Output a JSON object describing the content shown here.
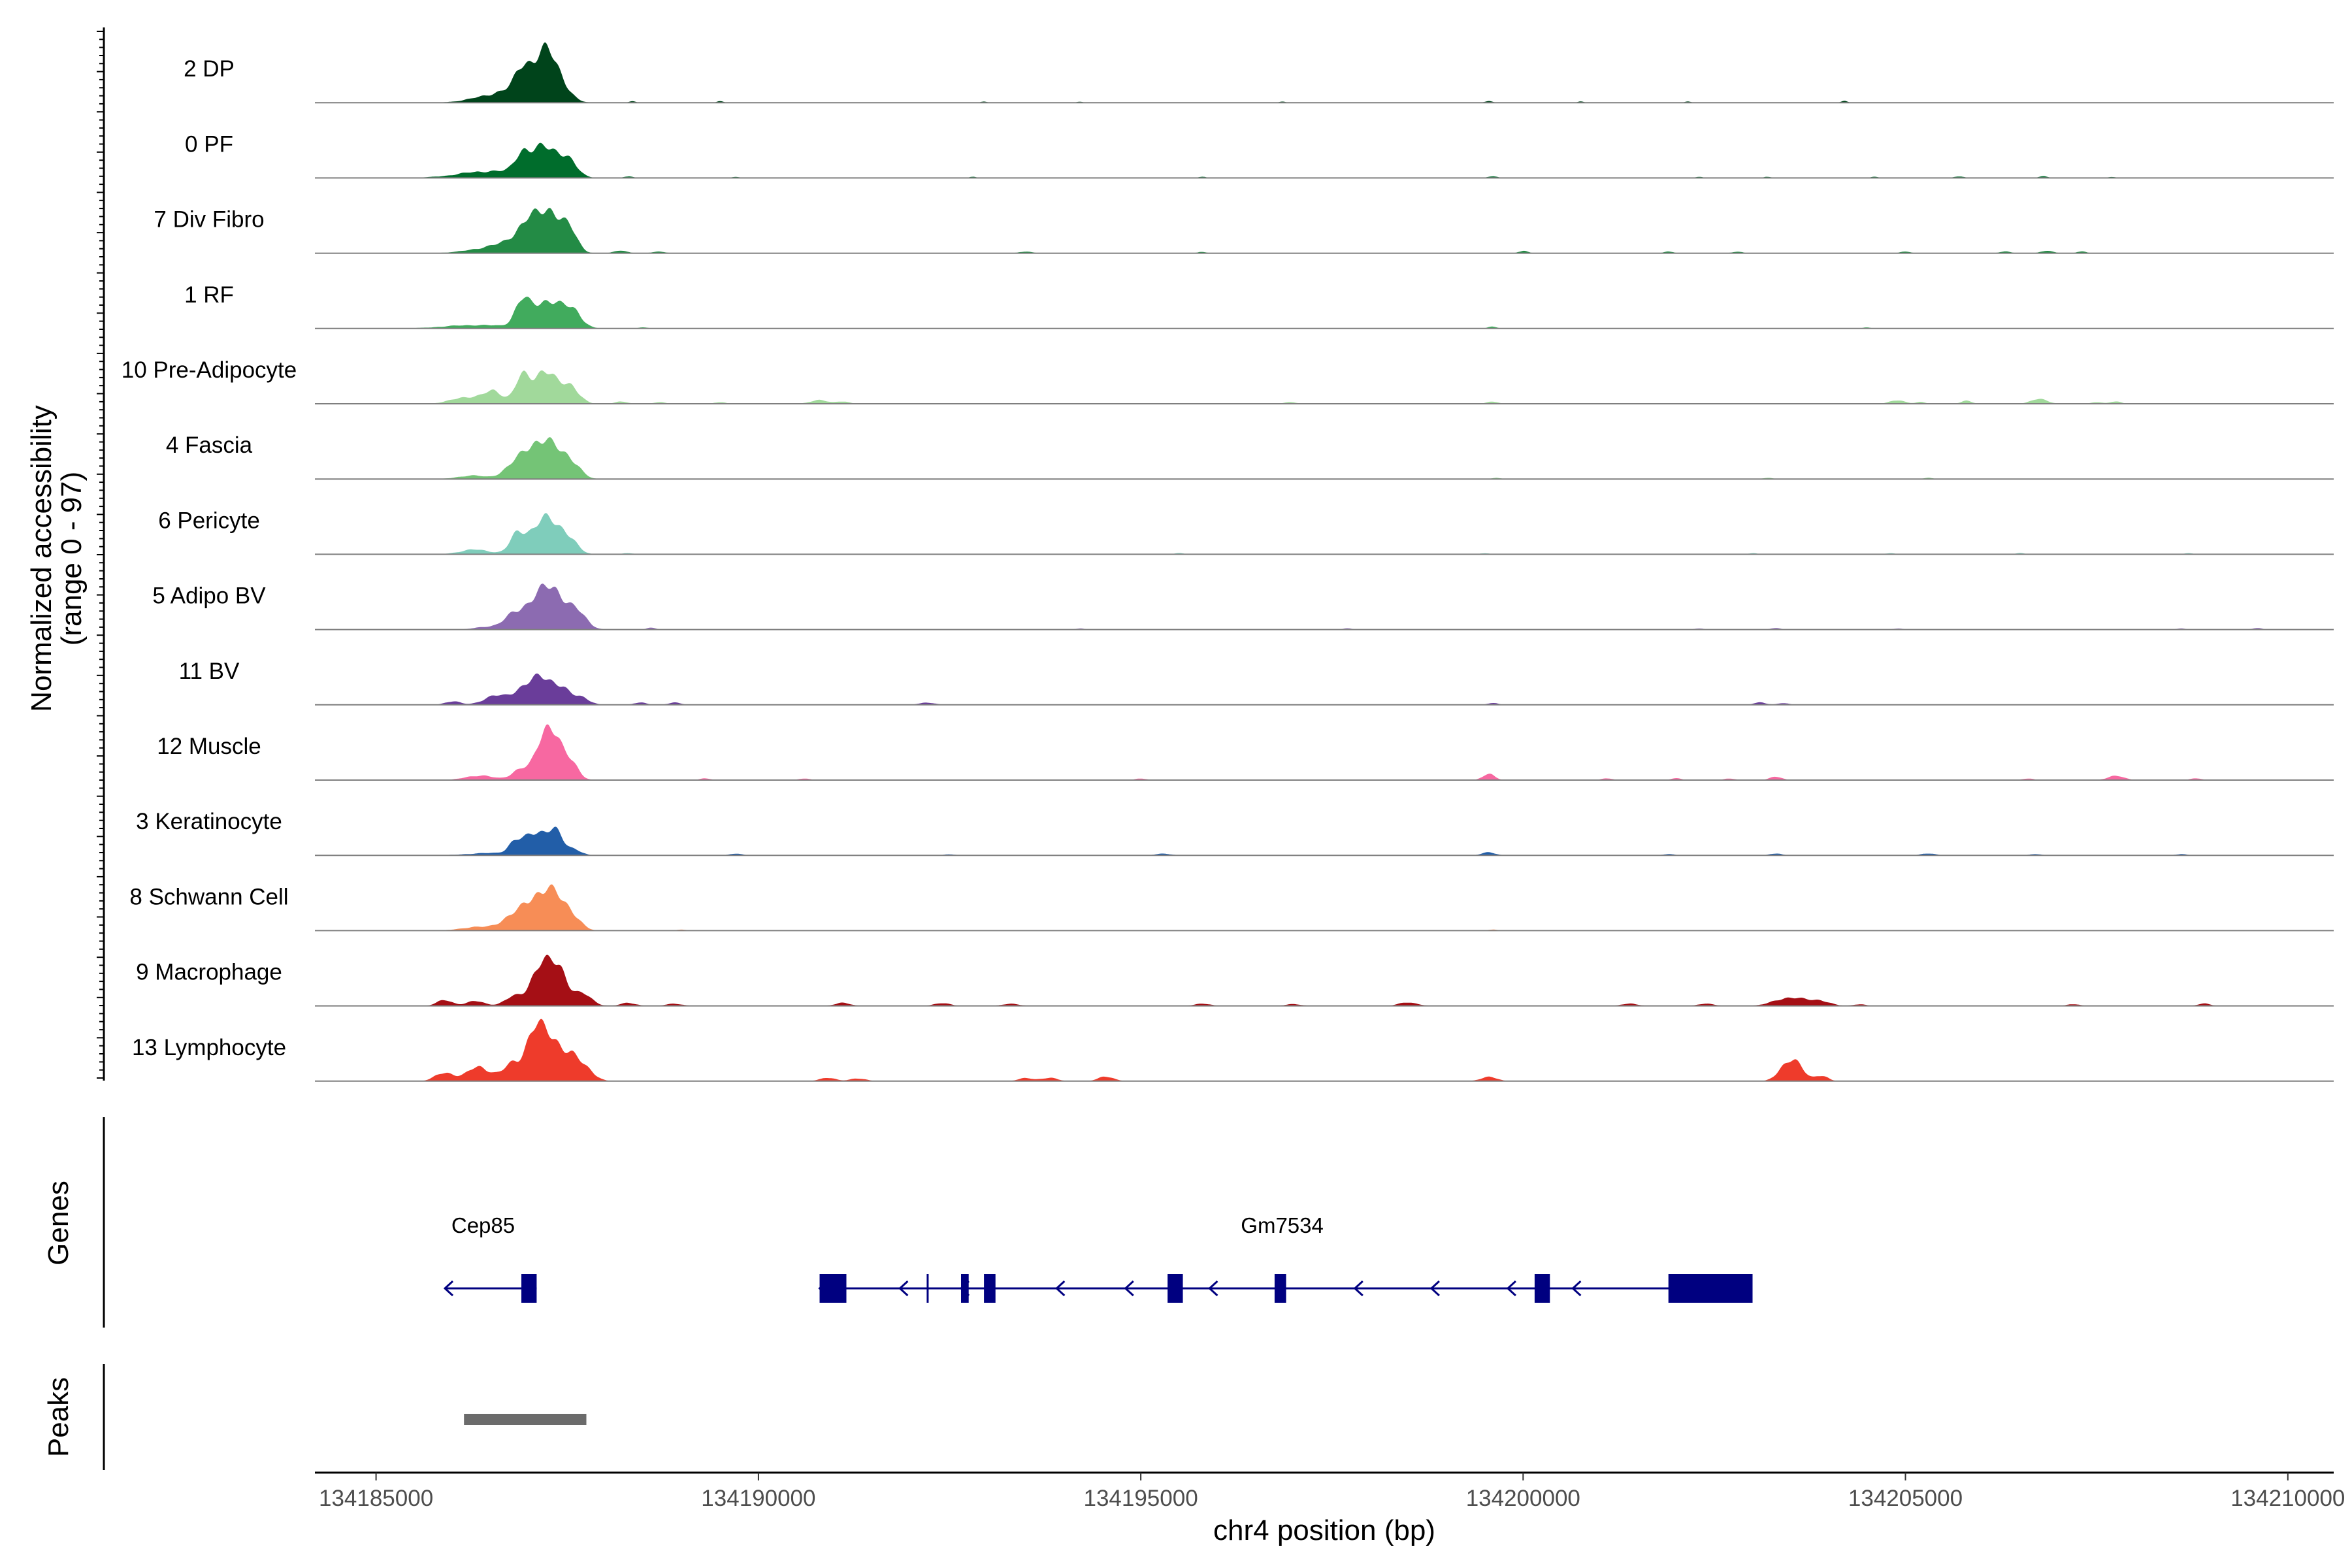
{
  "chart_data": {
    "type": "area",
    "chromosome": "chr4",
    "xlabel": "chr4 position (bp)",
    "ylabel": "Normalized accessibility",
    "ylabel_range": "(range 0 - 97)",
    "xlim": [
      134184200,
      134210600
    ],
    "xticks": [
      134185000,
      134190000,
      134195000,
      134200000,
      134205000,
      134210000
    ],
    "y_range": [
      0,
      97
    ],
    "series": [
      {
        "name": "2 DP",
        "color": "#00441b",
        "peaks": [
          [
            134186750,
            20,
            350
          ],
          [
            134187050,
            42,
            150
          ],
          [
            134187250,
            50,
            120
          ],
          [
            134187400,
            30,
            130
          ],
          [
            134186900,
            25,
            80
          ],
          [
            134188350,
            3,
            40
          ],
          [
            134189500,
            3,
            40
          ],
          [
            134192950,
            2,
            40
          ],
          [
            134194200,
            2,
            40
          ],
          [
            134196850,
            2,
            40
          ],
          [
            134199550,
            3,
            50
          ],
          [
            134200750,
            2,
            40
          ],
          [
            134202150,
            2,
            40
          ],
          [
            134204200,
            3,
            40
          ]
        ]
      },
      {
        "name": "0 PF",
        "color": "#006d2c",
        "peaks": [
          [
            134186500,
            12,
            400
          ],
          [
            134186900,
            30,
            90
          ],
          [
            134187200,
            50,
            180
          ],
          [
            134187500,
            25,
            130
          ],
          [
            134188300,
            3,
            60
          ],
          [
            134189700,
            2,
            50
          ],
          [
            134192800,
            2,
            50
          ],
          [
            134195800,
            2,
            50
          ],
          [
            134199600,
            3,
            60
          ],
          [
            134202300,
            2,
            50
          ],
          [
            134203200,
            2,
            50
          ],
          [
            134204600,
            2,
            50
          ],
          [
            134205700,
            3,
            60
          ],
          [
            134206800,
            3,
            60
          ],
          [
            134207700,
            2,
            50
          ]
        ]
      },
      {
        "name": "7 Div Fibro",
        "color": "#238b45",
        "peaks": [
          [
            134186700,
            15,
            350
          ],
          [
            134187000,
            45,
            160
          ],
          [
            134187300,
            65,
            140
          ],
          [
            134187550,
            30,
            100
          ],
          [
            134188200,
            5,
            80
          ],
          [
            134188700,
            3,
            80
          ],
          [
            134193500,
            3,
            80
          ],
          [
            134195800,
            2,
            60
          ],
          [
            134200000,
            4,
            60
          ],
          [
            134201900,
            3,
            60
          ],
          [
            134202800,
            3,
            60
          ],
          [
            134205000,
            3,
            60
          ],
          [
            134206300,
            3,
            70
          ],
          [
            134206850,
            4,
            80
          ],
          [
            134207300,
            3,
            60
          ]
        ]
      },
      {
        "name": "1 RF",
        "color": "#41ab5d",
        "peaks": [
          [
            134186300,
            6,
            400
          ],
          [
            134186900,
            35,
            90
          ],
          [
            134187250,
            50,
            220
          ],
          [
            134187600,
            20,
            100
          ],
          [
            134188500,
            2,
            60
          ],
          [
            134199600,
            3,
            60
          ],
          [
            134204500,
            2,
            50
          ]
        ]
      },
      {
        "name": "10 Pre-Adipocyte",
        "color": "#a1d99b",
        "peaks": [
          [
            134186200,
            12,
            200
          ],
          [
            134186550,
            20,
            120
          ],
          [
            134186900,
            40,
            90
          ],
          [
            134187200,
            60,
            150
          ],
          [
            134187550,
            30,
            110
          ],
          [
            134188200,
            4,
            80
          ],
          [
            134188700,
            3,
            70
          ],
          [
            134189500,
            3,
            70
          ],
          [
            134190800,
            6,
            120
          ],
          [
            134191100,
            4,
            80
          ],
          [
            134196950,
            3,
            70
          ],
          [
            134199600,
            4,
            70
          ],
          [
            134204900,
            6,
            100
          ],
          [
            134205200,
            3,
            60
          ],
          [
            134205800,
            5,
            70
          ],
          [
            134206750,
            8,
            110
          ],
          [
            134207500,
            3,
            70
          ],
          [
            134207750,
            4,
            70
          ]
        ]
      },
      {
        "name": "4 Fascia",
        "color": "#74c476",
        "peaks": [
          [
            134186250,
            6,
            180
          ],
          [
            134186750,
            15,
            130
          ],
          [
            134187000,
            35,
            150
          ],
          [
            134187250,
            55,
            180
          ],
          [
            134187550,
            25,
            120
          ],
          [
            134199650,
            2,
            60
          ],
          [
            134203200,
            2,
            60
          ],
          [
            134205300,
            2,
            60
          ]
        ]
      },
      {
        "name": "6 Pericyte",
        "color": "#7fcdbb",
        "peaks": [
          [
            134186300,
            8,
            200
          ],
          [
            134186850,
            30,
            100
          ],
          [
            134187200,
            60,
            180
          ],
          [
            134187500,
            25,
            120
          ],
          [
            134188300,
            2,
            70
          ],
          [
            134195500,
            2,
            60
          ],
          [
            134199500,
            2,
            60
          ],
          [
            134203000,
            2,
            60
          ],
          [
            134204800,
            2,
            60
          ],
          [
            134206500,
            2,
            60
          ],
          [
            134208700,
            2,
            60
          ]
        ]
      },
      {
        "name": "5 Adipo BV",
        "color": "#8c6bb1",
        "peaks": [
          [
            134186450,
            5,
            150
          ],
          [
            134186800,
            20,
            130
          ],
          [
            134187100,
            45,
            180
          ],
          [
            134187350,
            55,
            150
          ],
          [
            134187650,
            25,
            120
          ],
          [
            134188600,
            3,
            60
          ],
          [
            134194200,
            2,
            60
          ],
          [
            134197700,
            2,
            60
          ],
          [
            134202300,
            2,
            60
          ],
          [
            134203300,
            3,
            60
          ],
          [
            134204900,
            2,
            60
          ],
          [
            134208600,
            2,
            60
          ],
          [
            134209600,
            3,
            60
          ]
        ]
      },
      {
        "name": "11 BV",
        "color": "#6a3d9a",
        "peaks": [
          [
            134186000,
            6,
            100
          ],
          [
            134186550,
            15,
            150
          ],
          [
            134186900,
            25,
            130
          ],
          [
            134187150,
            40,
            130
          ],
          [
            134187400,
            30,
            130
          ],
          [
            134187700,
            12,
            100
          ],
          [
            134188450,
            4,
            80
          ],
          [
            134188900,
            4,
            80
          ],
          [
            134192200,
            4,
            100
          ],
          [
            134199600,
            3,
            70
          ],
          [
            134203100,
            4,
            80
          ],
          [
            134203400,
            3,
            70
          ]
        ]
      },
      {
        "name": "12 Muscle",
        "color": "#f768a1",
        "peaks": [
          [
            134186350,
            8,
            180
          ],
          [
            134186900,
            20,
            120
          ],
          [
            134187150,
            40,
            90
          ],
          [
            134187300,
            85,
            110
          ],
          [
            134187550,
            30,
            100
          ],
          [
            134189300,
            3,
            70
          ],
          [
            134190600,
            3,
            70
          ],
          [
            134195000,
            3,
            70
          ],
          [
            134199550,
            10,
            80
          ],
          [
            134201100,
            3,
            70
          ],
          [
            134202000,
            3,
            70
          ],
          [
            134202700,
            3,
            70
          ],
          [
            134203300,
            6,
            80
          ],
          [
            134206600,
            3,
            70
          ],
          [
            134207750,
            7,
            110
          ],
          [
            134208800,
            3,
            70
          ]
        ]
      },
      {
        "name": "3 Keratinocyte",
        "color": "#225ea8",
        "peaks": [
          [
            134186500,
            4,
            300
          ],
          [
            134186800,
            15,
            80
          ],
          [
            134187100,
            40,
            170
          ],
          [
            134187350,
            30,
            100
          ],
          [
            134187600,
            10,
            90
          ],
          [
            134189700,
            3,
            80
          ],
          [
            134192500,
            2,
            70
          ],
          [
            134195300,
            3,
            100
          ],
          [
            134199550,
            5,
            90
          ],
          [
            134201900,
            2,
            80
          ],
          [
            134203300,
            3,
            80
          ],
          [
            134205300,
            3,
            100
          ],
          [
            134206700,
            2,
            80
          ],
          [
            134208600,
            2,
            80
          ]
        ]
      },
      {
        "name": "8 Schwann Cell",
        "color": "#f78d56",
        "peaks": [
          [
            134186300,
            6,
            200
          ],
          [
            134186750,
            20,
            150
          ],
          [
            134187050,
            45,
            150
          ],
          [
            134187300,
            55,
            150
          ],
          [
            134187550,
            25,
            120
          ],
          [
            134189000,
            2,
            60
          ],
          [
            134199600,
            2,
            60
          ]
        ]
      },
      {
        "name": "9 Macrophage",
        "color": "#a50f15",
        "peaks": [
          [
            134185900,
            10,
            100
          ],
          [
            134186300,
            8,
            120
          ],
          [
            134186800,
            15,
            120
          ],
          [
            134187150,
            70,
            130
          ],
          [
            134187400,
            60,
            110
          ],
          [
            134187700,
            20,
            120
          ],
          [
            134188300,
            5,
            100
          ],
          [
            134188900,
            4,
            100
          ],
          [
            134191100,
            5,
            100
          ],
          [
            134192400,
            5,
            100
          ],
          [
            134193300,
            4,
            100
          ],
          [
            134195800,
            4,
            100
          ],
          [
            134197000,
            3,
            100
          ],
          [
            134198500,
            6,
            120
          ],
          [
            134201400,
            4,
            100
          ],
          [
            134202400,
            4,
            100
          ],
          [
            134203500,
            15,
            200
          ],
          [
            134203900,
            8,
            120
          ],
          [
            134204400,
            3,
            80
          ],
          [
            134207200,
            3,
            80
          ],
          [
            134208900,
            4,
            80
          ]
        ]
      },
      {
        "name": "13 Lymphocyte",
        "color": "#ee3b2b",
        "peaks": [
          [
            134185900,
            15,
            120
          ],
          [
            134186350,
            25,
            150
          ],
          [
            134186800,
            30,
            130
          ],
          [
            134187050,
            60,
            100
          ],
          [
            134187250,
            70,
            150
          ],
          [
            134187550,
            40,
            150
          ],
          [
            134187800,
            10,
            100
          ],
          [
            134190900,
            6,
            100
          ],
          [
            134191300,
            5,
            100
          ],
          [
            134193500,
            5,
            100
          ],
          [
            134193800,
            6,
            100
          ],
          [
            134194550,
            8,
            100
          ],
          [
            134199550,
            8,
            100
          ],
          [
            134203400,
            15,
            100
          ],
          [
            134203550,
            30,
            120
          ],
          [
            134203900,
            10,
            80
          ]
        ]
      }
    ],
    "genes": {
      "track_label": "Genes",
      "items": [
        {
          "name": "Cep85",
          "start": 134185900,
          "end": 134187100,
          "strand": "-",
          "label_x": 134186400,
          "exons": [
            [
              134186900,
              134187100
            ]
          ]
        },
        {
          "name": "Gm7534",
          "start": 134190800,
          "end": 134203000,
          "strand": "-",
          "label_x": 134196850,
          "exons": [
            [
              134190800,
              134191150
            ],
            [
              134192200,
              134192210
            ],
            [
              134192650,
              134192750
            ],
            [
              134192950,
              134193100
            ],
            [
              134195350,
              134195550
            ],
            [
              134196750,
              134196900
            ],
            [
              134200150,
              134200350
            ],
            [
              134201900,
              134203000
            ]
          ],
          "arrows": [
            134191850,
            134192650,
            134193900,
            134194800,
            134195900,
            134197800,
            134198800,
            134199800,
            134200650
          ]
        }
      ]
    },
    "peaks_track": {
      "track_label": "Peaks",
      "regions": [
        [
          134186150,
          134187750
        ]
      ]
    }
  }
}
